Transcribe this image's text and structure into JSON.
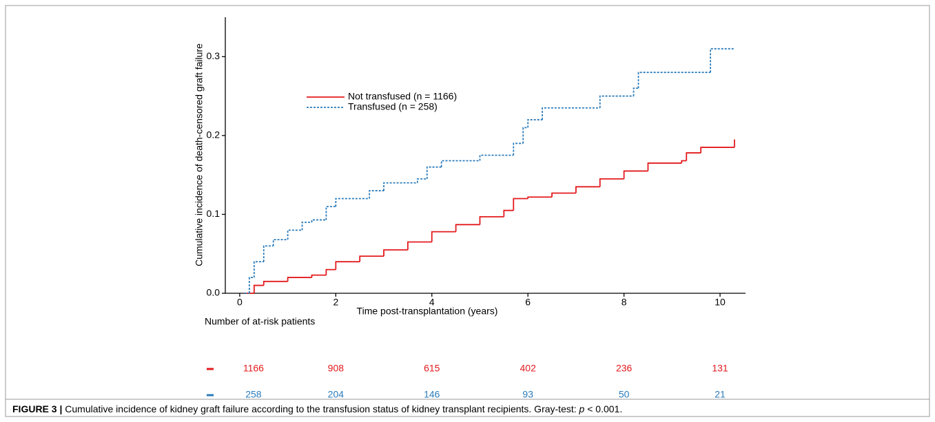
{
  "chart_data": {
    "type": "step",
    "y_label": "Cumulative incidence of death-censored graft failure",
    "x_label": "Time post-transplantation (years)",
    "xlim": [
      -0.3,
      10.53
    ],
    "ylim": [
      0,
      0.35
    ],
    "xticks": [
      0,
      2,
      4,
      6,
      8,
      10
    ],
    "yticks": [
      {
        "value": 0,
        "label": "0.0"
      },
      0.1,
      0.2,
      0.3
    ],
    "series": [
      {
        "name": "Not transfused (n = 1166)",
        "color": "#e31a1c",
        "dash": false,
        "x": [
          0.1,
          0.3,
          0.5,
          1.0,
          1.5,
          1.8,
          2.0,
          2.5,
          3.0,
          3.5,
          4.0,
          4.5,
          5.0,
          5.5,
          5.7,
          6.0,
          6.5,
          7.0,
          7.5,
          8.0,
          8.5,
          9.2,
          9.3,
          9.6,
          10.3
        ],
        "values": [
          0,
          0.01,
          0.015,
          0.02,
          0.023,
          0.03,
          0.04,
          0.047,
          0.055,
          0.065,
          0.078,
          0.087,
          0.097,
          0.105,
          0.12,
          0.122,
          0.127,
          0.135,
          0.145,
          0.155,
          0.165,
          0.168,
          0.178,
          0.185,
          0.195
        ]
      },
      {
        "name": "Transfused (n = 258)",
        "color": "#2b7bba",
        "dash": true,
        "x": [
          0.1,
          0.2,
          0.3,
          0.5,
          0.7,
          1.0,
          1.3,
          1.5,
          1.8,
          2.0,
          2.7,
          3.0,
          3.7,
          3.9,
          4.2,
          5.0,
          5.7,
          5.9,
          6.0,
          6.3,
          7.5,
          8.2,
          8.3,
          9.8,
          10.3
        ],
        "values": [
          0,
          0.02,
          0.04,
          0.06,
          0.068,
          0.08,
          0.09,
          0.093,
          0.11,
          0.12,
          0.13,
          0.14,
          0.145,
          0.16,
          0.168,
          0.175,
          0.19,
          0.21,
          0.22,
          0.235,
          0.25,
          0.26,
          0.28,
          0.31,
          0.31
        ]
      }
    ],
    "risk_table": {
      "title": "Number of at-risk patients",
      "times": [
        0,
        2,
        4,
        6,
        8,
        10
      ],
      "rows": [
        [
          1166,
          908,
          615,
          402,
          236,
          131
        ],
        [
          258,
          204,
          146,
          93,
          50,
          21
        ]
      ]
    }
  },
  "caption": {
    "label": "FIGURE 3 |",
    "text": "Cumulative incidence of kidney graft failure according to the transfusion status of kidney transplant recipients. Gray-test:",
    "italic": "p",
    "tail": "< 0.001."
  }
}
